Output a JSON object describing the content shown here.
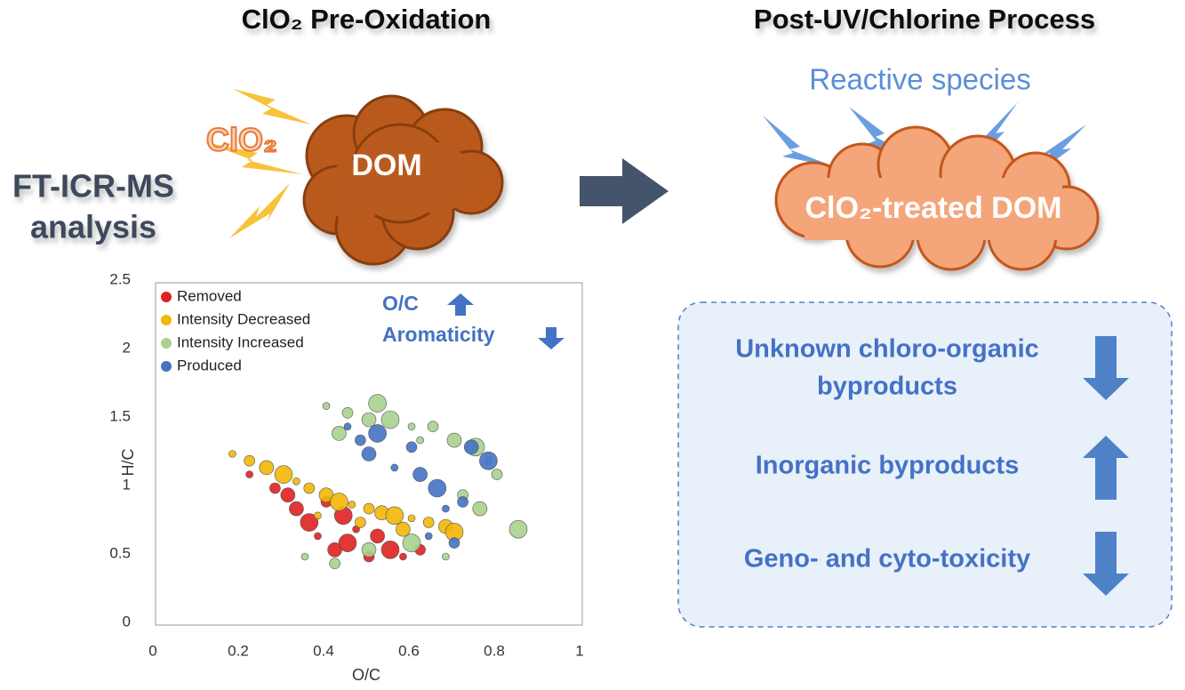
{
  "left_title": "ClO₂ Pre-Oxidation",
  "right_title": "Post-UV/Chlorine Process",
  "left_labels": {
    "method": [
      "FT-ICR-MS",
      "analysis"
    ],
    "oxidant": "ClO₂",
    "target": "DOM"
  },
  "right_labels": {
    "species": "Reactive species",
    "target": "ClO₂-treated DOM"
  },
  "effects": [
    {
      "lines": [
        "Unknown chloro-organic",
        "byproducts"
      ]
    },
    {
      "lines": [
        "Inorganic byproducts"
      ]
    },
    {
      "lines": [
        "Geno- and cyto-toxicity"
      ]
    }
  ],
  "chart_data": {
    "type": "scatter",
    "xlabel": "O/C",
    "ylabel": "H/C",
    "annotations": [
      "O/C",
      "Aromaticity"
    ],
    "xlim": [
      0,
      1
    ],
    "ylim": [
      0,
      2.5
    ],
    "xticks": [
      0,
      0.2,
      0.4,
      0.6,
      0.8,
      1
    ],
    "yticks": [
      0,
      0.5,
      1,
      1.5,
      2,
      2.5
    ],
    "grid": false,
    "legend": "upper left",
    "series": [
      {
        "name": "Removed",
        "color": "#e02020",
        "x": [
          0.22,
          0.28,
          0.33,
          0.36,
          0.38,
          0.4,
          0.42,
          0.45,
          0.47,
          0.5,
          0.52,
          0.55,
          0.58,
          0.62,
          0.31,
          0.44
        ],
        "y": [
          1.1,
          1.0,
          0.85,
          0.75,
          0.65,
          0.9,
          0.55,
          0.6,
          0.7,
          0.5,
          0.65,
          0.55,
          0.5,
          0.55,
          0.95,
          0.8
        ]
      },
      {
        "name": "Intensity Decreased",
        "color": "#f2b705",
        "x": [
          0.18,
          0.22,
          0.26,
          0.3,
          0.33,
          0.36,
          0.4,
          0.43,
          0.46,
          0.5,
          0.53,
          0.56,
          0.6,
          0.64,
          0.68,
          0.7,
          0.38,
          0.48,
          0.58
        ],
        "y": [
          1.25,
          1.2,
          1.15,
          1.1,
          1.05,
          1.0,
          0.95,
          0.9,
          0.88,
          0.85,
          0.82,
          0.8,
          0.78,
          0.75,
          0.72,
          0.68,
          0.8,
          0.75,
          0.7
        ]
      },
      {
        "name": "Intensity Increased",
        "color": "#a9d18e",
        "x": [
          0.4,
          0.45,
          0.5,
          0.55,
          0.6,
          0.65,
          0.7,
          0.75,
          0.78,
          0.8,
          0.43,
          0.52,
          0.62,
          0.72,
          0.76,
          0.85,
          0.35,
          0.42,
          0.5,
          0.6,
          0.68
        ],
        "y": [
          1.6,
          1.55,
          1.5,
          1.5,
          1.45,
          1.45,
          1.35,
          1.3,
          1.2,
          1.1,
          1.4,
          1.62,
          1.35,
          0.95,
          0.85,
          0.7,
          0.5,
          0.45,
          0.55,
          0.6,
          0.5
        ]
      },
      {
        "name": "Produced",
        "color": "#4472c4",
        "x": [
          0.45,
          0.48,
          0.5,
          0.52,
          0.56,
          0.6,
          0.62,
          0.66,
          0.68,
          0.72,
          0.74,
          0.78,
          0.64,
          0.7
        ],
        "y": [
          1.45,
          1.35,
          1.25,
          1.4,
          1.15,
          1.3,
          1.1,
          1.0,
          0.85,
          0.9,
          1.3,
          1.2,
          0.65,
          0.6
        ]
      }
    ]
  }
}
